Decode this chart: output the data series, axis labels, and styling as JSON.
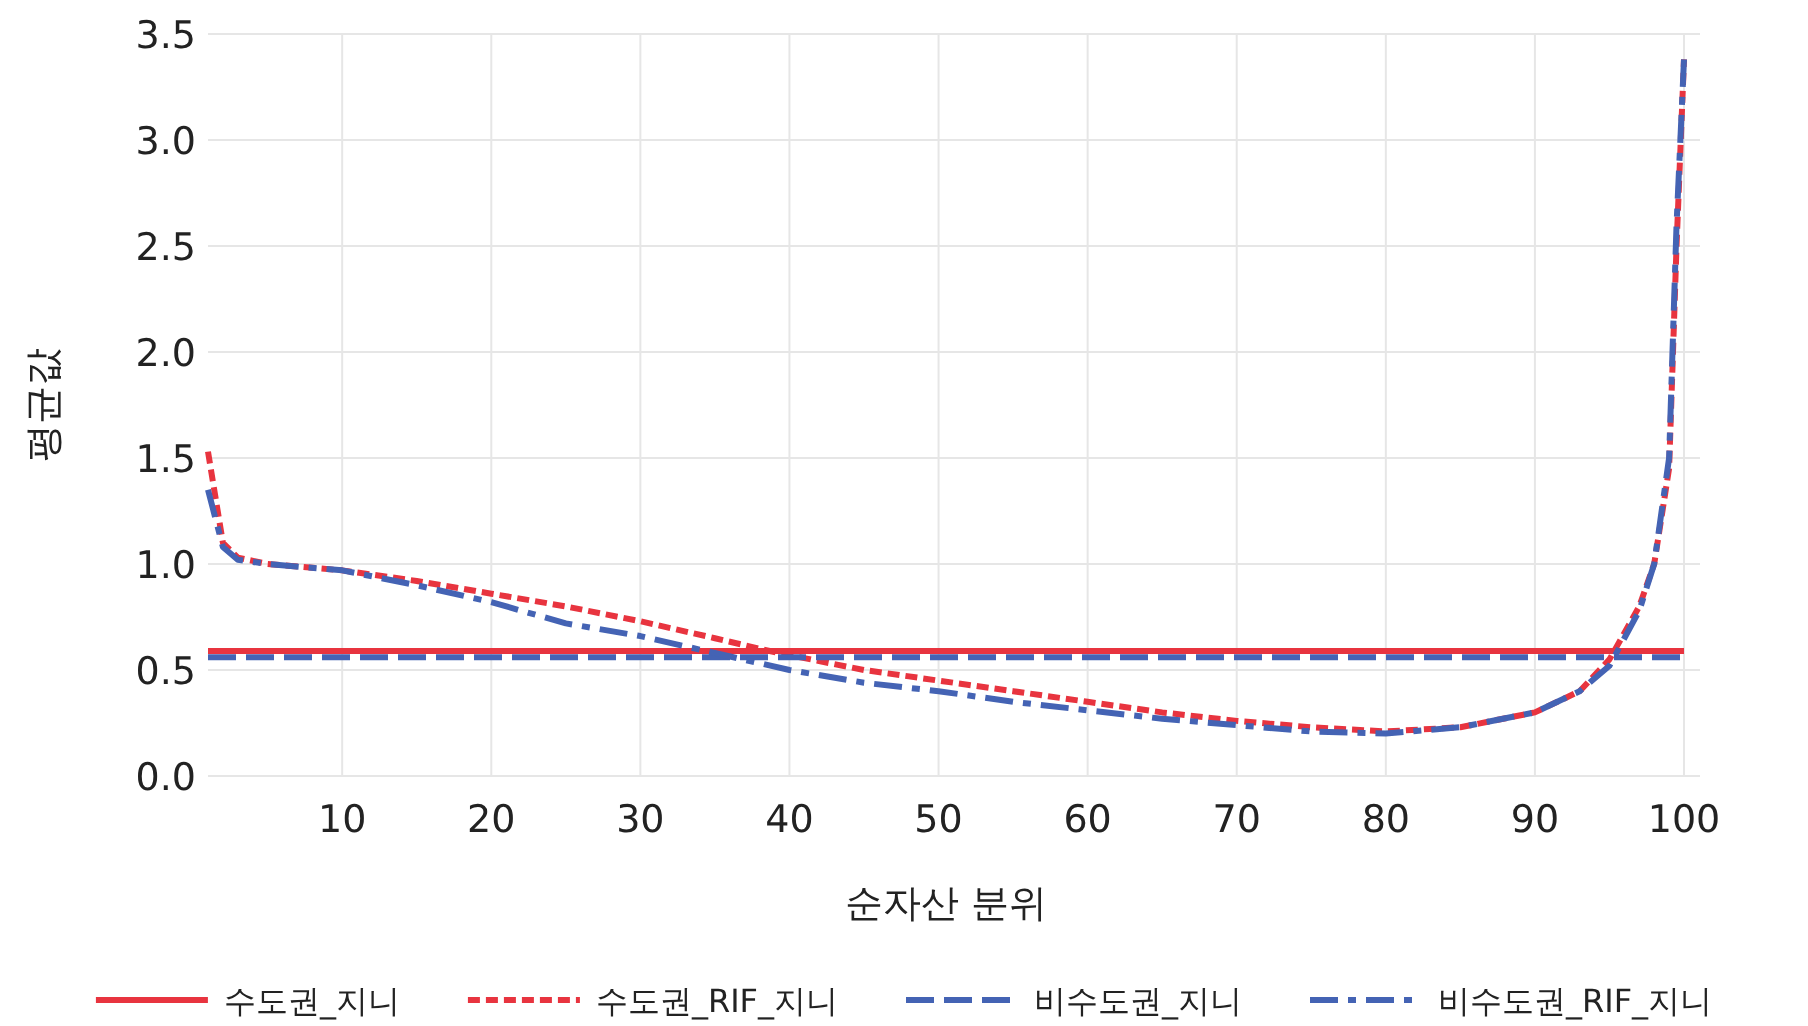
{
  "chart_data": {
    "type": "line",
    "xlabel": "순자산 분위",
    "ylabel": "평균값",
    "xlim": [
      1,
      100
    ],
    "xticks": [
      10,
      20,
      30,
      40,
      50,
      60,
      70,
      80,
      90,
      100
    ],
    "ylim": [
      0,
      3.5
    ],
    "yticks": [
      {
        "value": 0,
        "label": "0.0"
      },
      {
        "value": 0.5,
        "label": "0.5"
      },
      {
        "value": 1,
        "label": "1.0"
      },
      {
        "value": 1.5,
        "label": "1.5"
      },
      {
        "value": 2,
        "label": "2.0"
      },
      {
        "value": 2.5,
        "label": "2.5"
      },
      {
        "value": 3,
        "label": "3.0"
      },
      {
        "value": 3.5,
        "label": "3.5"
      }
    ],
    "grid": true,
    "legend": "bottom",
    "marker": "none",
    "series": [
      {
        "name": "수도권_지니",
        "color": "#e8343f",
        "line_style": "solid",
        "x": [
          1,
          100
        ],
        "values": [
          0.59,
          0.59
        ]
      },
      {
        "name": "수도권_RIF_지니",
        "color": "#e8343f",
        "line_style": "dashed",
        "x": [
          1,
          2,
          3,
          5,
          10,
          15,
          20,
          25,
          30,
          35,
          38,
          40,
          45,
          50,
          55,
          60,
          65,
          70,
          75,
          80,
          85,
          90,
          93,
          95,
          97,
          98,
          99,
          99.5,
          100
        ],
        "values": [
          1.53,
          1.1,
          1.03,
          1.0,
          0.97,
          0.92,
          0.86,
          0.8,
          0.73,
          0.65,
          0.6,
          0.57,
          0.5,
          0.45,
          0.4,
          0.35,
          0.3,
          0.26,
          0.23,
          0.21,
          0.23,
          0.3,
          0.4,
          0.55,
          0.8,
          1.0,
          1.45,
          2.5,
          3.38
        ]
      },
      {
        "name": "비수도권_지니",
        "color": "#4463b4",
        "line_style": "longdash",
        "x": [
          1,
          100
        ],
        "values": [
          0.56,
          0.56
        ]
      },
      {
        "name": "비수도권_RIF_지니",
        "color": "#4463b4",
        "line_style": "dashdot",
        "x": [
          1,
          2,
          3,
          5,
          10,
          15,
          20,
          25,
          30,
          35,
          40,
          45,
          50,
          55,
          60,
          65,
          70,
          75,
          80,
          85,
          90,
          93,
          95,
          97,
          98,
          99,
          99.5,
          100
        ],
        "values": [
          1.35,
          1.08,
          1.02,
          1.0,
          0.97,
          0.9,
          0.82,
          0.72,
          0.66,
          0.58,
          0.5,
          0.44,
          0.4,
          0.35,
          0.31,
          0.27,
          0.24,
          0.21,
          0.2,
          0.23,
          0.3,
          0.4,
          0.52,
          0.78,
          1.0,
          1.5,
          2.6,
          3.38
        ]
      }
    ]
  }
}
